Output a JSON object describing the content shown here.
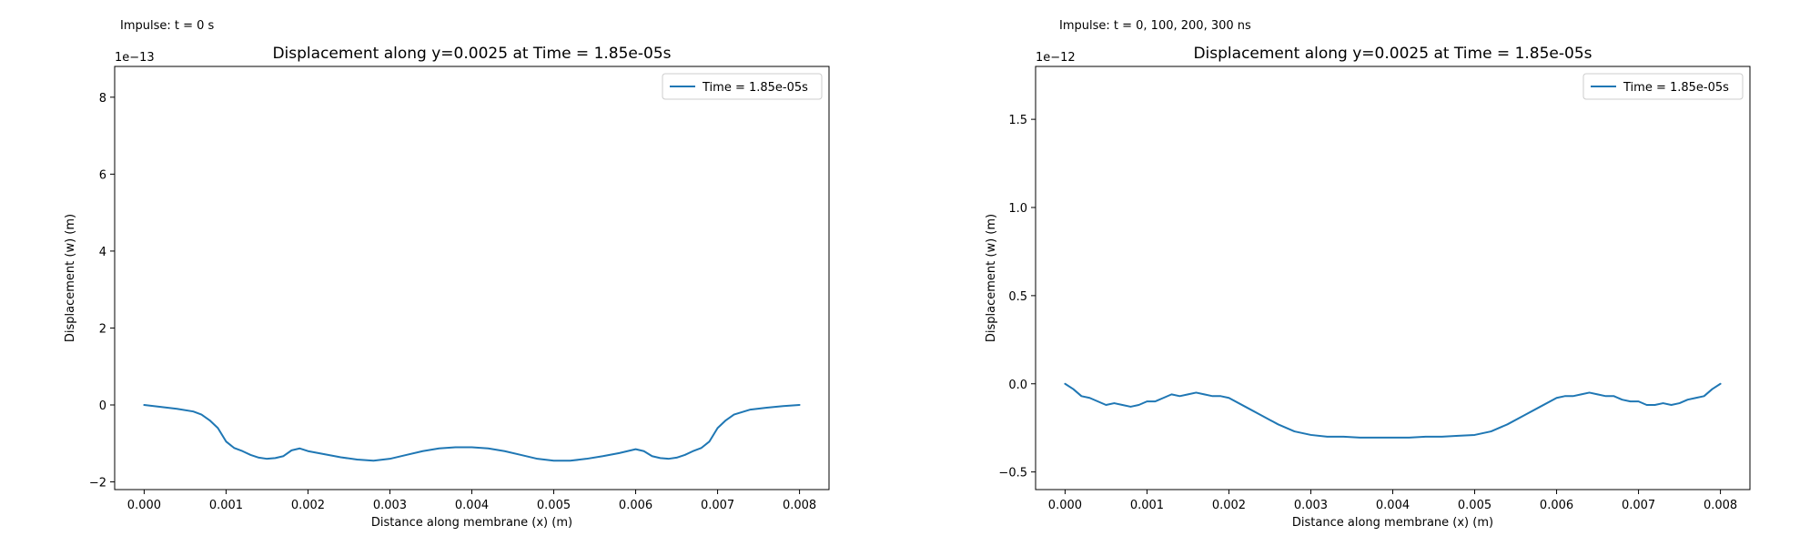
{
  "panels": [
    {
      "label": "Impulse: t = 0 s"
    },
    {
      "label": "Impulse: t = 0, 100, 200, 300 ns"
    }
  ],
  "colors": {
    "series": "#1f77b4",
    "axes": "#000000"
  },
  "chart_data": [
    {
      "type": "line",
      "title": "Displacement along y=0.0025 at Time = 1.85e-05s",
      "xlabel": "Distance along membrane (x) (m)",
      "ylabel": "Displacement (w) (m)",
      "y_offset_text": "1e−13",
      "xlim": [
        -0.00036,
        0.00836
      ],
      "ylim": [
        -2.2e-13,
        8.8e-13
      ],
      "xticks": [
        0.0,
        0.001,
        0.002,
        0.003,
        0.004,
        0.005,
        0.006,
        0.007,
        0.008
      ],
      "xtick_labels": [
        "0.000",
        "0.001",
        "0.002",
        "0.003",
        "0.004",
        "0.005",
        "0.006",
        "0.007",
        "0.008"
      ],
      "yticks": [
        -2e-13,
        0,
        2e-13,
        4e-13,
        6e-13,
        8e-13
      ],
      "ytick_labels": [
        "−2",
        "0",
        "2",
        "4",
        "6",
        "8"
      ],
      "grid": false,
      "legend": "upper right",
      "series": [
        {
          "name": "Time = 1.85e-05s",
          "x": [
            0.0,
            0.0002,
            0.0004,
            0.0006,
            0.0007,
            0.0008,
            0.0009,
            0.001,
            0.0011,
            0.0012,
            0.0013,
            0.0014,
            0.0015,
            0.0016,
            0.0017,
            0.0018,
            0.0019,
            0.002,
            0.0022,
            0.0024,
            0.0026,
            0.0028,
            0.003,
            0.0032,
            0.0034,
            0.0036,
            0.0038,
            0.004,
            0.0042,
            0.0044,
            0.0046,
            0.0048,
            0.005,
            0.0052,
            0.0054,
            0.0056,
            0.0058,
            0.006,
            0.0061,
            0.0062,
            0.0063,
            0.0064,
            0.0065,
            0.0066,
            0.0067,
            0.0068,
            0.0069,
            0.007,
            0.0071,
            0.0072,
            0.0074,
            0.0076,
            0.0078,
            0.008
          ],
          "y": [
            0.0,
            -5e-15,
            -1e-14,
            -1.7e-14,
            -2.5e-14,
            -4e-14,
            -6e-14,
            -9.5e-14,
            -1.12e-13,
            -1.2e-13,
            -1.3e-13,
            -1.37e-13,
            -1.4e-13,
            -1.38e-13,
            -1.33e-13,
            -1.18e-13,
            -1.13e-13,
            -1.2e-13,
            -1.28e-13,
            -1.36e-13,
            -1.42e-13,
            -1.45e-13,
            -1.4e-13,
            -1.3e-13,
            -1.2e-13,
            -1.13e-13,
            -1.1e-13,
            -1.1e-13,
            -1.13e-13,
            -1.2e-13,
            -1.3e-13,
            -1.4e-13,
            -1.45e-13,
            -1.45e-13,
            -1.4e-13,
            -1.33e-13,
            -1.25e-13,
            -1.15e-13,
            -1.2e-13,
            -1.33e-13,
            -1.38e-13,
            -1.4e-13,
            -1.37e-13,
            -1.3e-13,
            -1.2e-13,
            -1.12e-13,
            -9.5e-14,
            -6e-14,
            -4e-14,
            -2.5e-14,
            -1.2e-14,
            -7e-15,
            -3e-15,
            0.0
          ]
        }
      ]
    },
    {
      "type": "line",
      "title": "Displacement along y=0.0025 at Time = 1.85e-05s",
      "xlabel": "Distance along membrane (x) (m)",
      "ylabel": "Displacement (w) (m)",
      "y_offset_text": "1e−12",
      "xlim": [
        -0.00036,
        0.00836
      ],
      "ylim": [
        -6e-13,
        1.8e-12
      ],
      "xticks": [
        0.0,
        0.001,
        0.002,
        0.003,
        0.004,
        0.005,
        0.006,
        0.007,
        0.008
      ],
      "xtick_labels": [
        "0.000",
        "0.001",
        "0.002",
        "0.003",
        "0.004",
        "0.005",
        "0.006",
        "0.007",
        "0.008"
      ],
      "yticks": [
        -5e-13,
        0,
        5e-13,
        1e-12,
        1.5e-12
      ],
      "ytick_labels": [
        "−0.5",
        "0.0",
        "0.5",
        "1.0",
        "1.5"
      ],
      "grid": false,
      "legend": "upper right",
      "series": [
        {
          "name": "Time = 1.85e-05s",
          "x": [
            0.0,
            0.0001,
            0.0002,
            0.0003,
            0.0004,
            0.0005,
            0.0006,
            0.0007,
            0.0008,
            0.0009,
            0.001,
            0.0011,
            0.0012,
            0.0013,
            0.0014,
            0.0015,
            0.0016,
            0.0017,
            0.0018,
            0.0019,
            0.002,
            0.0022,
            0.0024,
            0.0026,
            0.0028,
            0.003,
            0.0032,
            0.0034,
            0.0036,
            0.0038,
            0.004,
            0.0042,
            0.0044,
            0.0046,
            0.0048,
            0.005,
            0.0052,
            0.0054,
            0.0056,
            0.0058,
            0.006,
            0.0061,
            0.0062,
            0.0063,
            0.0064,
            0.0065,
            0.0066,
            0.0067,
            0.0068,
            0.0069,
            0.007,
            0.0071,
            0.0072,
            0.0073,
            0.0074,
            0.0075,
            0.0076,
            0.0077,
            0.0078,
            0.0079,
            0.008
          ],
          "y": [
            0.0,
            -3e-14,
            -7e-14,
            -8e-14,
            -1e-13,
            -1.2e-13,
            -1.1e-13,
            -1.2e-13,
            -1.3e-13,
            -1.2e-13,
            -1e-13,
            -1e-13,
            -8e-14,
            -6e-14,
            -7e-14,
            -6e-14,
            -5e-14,
            -6e-14,
            -7e-14,
            -7e-14,
            -8e-14,
            -1.3e-13,
            -1.8e-13,
            -2.3e-13,
            -2.7e-13,
            -2.9e-13,
            -3e-13,
            -3e-13,
            -3.05e-13,
            -3.05e-13,
            -3.05e-13,
            -3.05e-13,
            -3e-13,
            -3e-13,
            -2.95e-13,
            -2.9e-13,
            -2.7e-13,
            -2.3e-13,
            -1.8e-13,
            -1.3e-13,
            -8e-14,
            -7e-14,
            -7e-14,
            -6e-14,
            -5e-14,
            -6e-14,
            -7e-14,
            -7e-14,
            -9e-14,
            -1e-13,
            -1e-13,
            -1.2e-13,
            -1.2e-13,
            -1.1e-13,
            -1.2e-13,
            -1.1e-13,
            -9e-14,
            -8e-14,
            -7e-14,
            -3e-14,
            0.0
          ]
        }
      ]
    }
  ]
}
